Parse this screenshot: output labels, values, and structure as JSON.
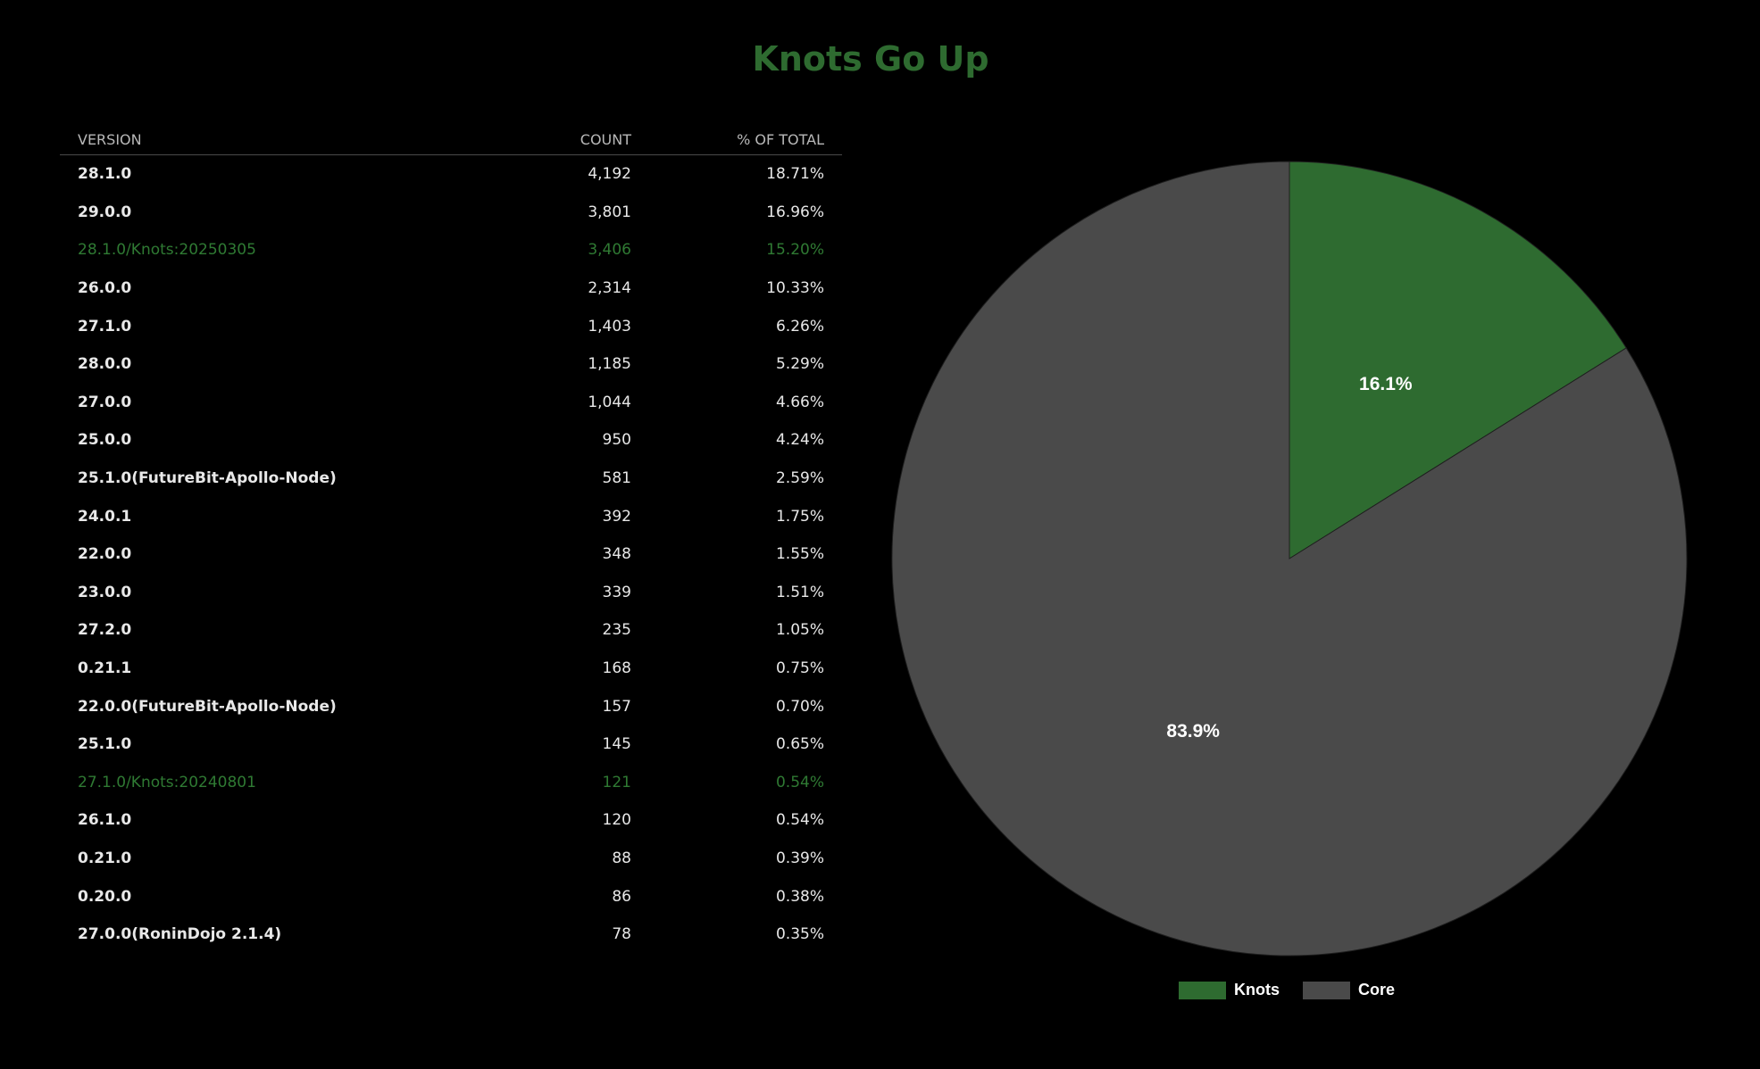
{
  "title": "Knots Go Up",
  "table": {
    "headers": [
      "VERSION",
      "COUNT",
      "% OF TOTAL"
    ],
    "rows": [
      {
        "version": "28.1.0",
        "count": "4,192",
        "pct": "18.71%",
        "knots": false
      },
      {
        "version": "29.0.0",
        "count": "3,801",
        "pct": "16.96%",
        "knots": false
      },
      {
        "version": "28.1.0/Knots:20250305",
        "count": "3,406",
        "pct": "15.20%",
        "knots": true
      },
      {
        "version": "26.0.0",
        "count": "2,314",
        "pct": "10.33%",
        "knots": false
      },
      {
        "version": "27.1.0",
        "count": "1,403",
        "pct": "6.26%",
        "knots": false
      },
      {
        "version": "28.0.0",
        "count": "1,185",
        "pct": "5.29%",
        "knots": false
      },
      {
        "version": "27.0.0",
        "count": "1,044",
        "pct": "4.66%",
        "knots": false
      },
      {
        "version": "25.0.0",
        "count": "950",
        "pct": "4.24%",
        "knots": false
      },
      {
        "version": "25.1.0(FutureBit-Apollo-Node)",
        "count": "581",
        "pct": "2.59%",
        "knots": false
      },
      {
        "version": "24.0.1",
        "count": "392",
        "pct": "1.75%",
        "knots": false
      },
      {
        "version": "22.0.0",
        "count": "348",
        "pct": "1.55%",
        "knots": false
      },
      {
        "version": "23.0.0",
        "count": "339",
        "pct": "1.51%",
        "knots": false
      },
      {
        "version": "27.2.0",
        "count": "235",
        "pct": "1.05%",
        "knots": false
      },
      {
        "version": "0.21.1",
        "count": "168",
        "pct": "0.75%",
        "knots": false
      },
      {
        "version": "22.0.0(FutureBit-Apollo-Node)",
        "count": "157",
        "pct": "0.70%",
        "knots": false
      },
      {
        "version": "25.1.0",
        "count": "145",
        "pct": "0.65%",
        "knots": false
      },
      {
        "version": "27.1.0/Knots:20240801",
        "count": "121",
        "pct": "0.54%",
        "knots": true
      },
      {
        "version": "26.1.0",
        "count": "120",
        "pct": "0.54%",
        "knots": false
      },
      {
        "version": "0.21.0",
        "count": "88",
        "pct": "0.39%",
        "knots": false
      },
      {
        "version": "0.20.0",
        "count": "86",
        "pct": "0.38%",
        "knots": false
      },
      {
        "version": "27.0.0(RoninDojo 2.1.4)",
        "count": "78",
        "pct": "0.35%",
        "knots": false
      }
    ]
  },
  "chart_data": {
    "type": "pie",
    "categories": [
      "Knots",
      "Core"
    ],
    "values": [
      16.1,
      83.9
    ],
    "labels": [
      "16.1%",
      "83.9%"
    ],
    "colors": [
      "#2e6b30",
      "#4a4a4a"
    ],
    "legend_position": "bottom"
  },
  "colors": {
    "background": "#000000",
    "accent": "#2e6b30",
    "knots_text": "#2f7a33",
    "core": "#4a4a4a"
  }
}
